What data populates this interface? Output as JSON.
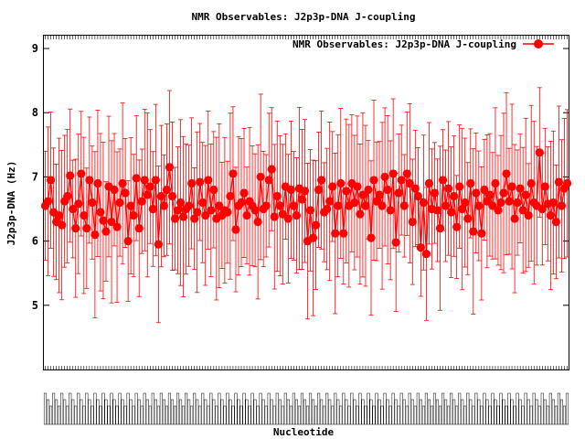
{
  "chart_data": {
    "type": "scatter",
    "title": "NMR Observables: J2p3p-DNA J-coupling",
    "xlabel": "Nucleotide",
    "ylabel": "J2p3p-DNA (Hz)",
    "ylim": [
      4,
      9.2
    ],
    "yticks": [
      "5",
      "6",
      "7",
      "8",
      "9"
    ],
    "grid": false,
    "legend_position": "top-right",
    "series": [
      {
        "name": "NMR Observables: J2p3p-DNA J-coupling",
        "color": "#ff0000",
        "marker": "filled-circle",
        "error_bars": true,
        "y": [
          6.55,
          6.62,
          6.95,
          6.45,
          6.3,
          6.4,
          6.25,
          6.62,
          6.7,
          7.02,
          6.5,
          6.2,
          6.58,
          7.05,
          6.4,
          6.2,
          6.95,
          6.6,
          6.1,
          6.9,
          6.45,
          6.32,
          6.15,
          6.85,
          6.3,
          6.8,
          6.22,
          6.6,
          6.9,
          6.75,
          6.0,
          6.55,
          6.4,
          6.98,
          6.2,
          6.62,
          6.95,
          6.72,
          6.85,
          6.5,
          6.95,
          5.95,
          6.7,
          6.55,
          6.8,
          7.15,
          6.7,
          6.35,
          6.48,
          6.6,
          6.38,
          6.5,
          6.55,
          6.9,
          6.35,
          6.45,
          6.92,
          6.6,
          6.4,
          6.95,
          6.48,
          6.8,
          6.35,
          6.55,
          6.4,
          6.48,
          6.45,
          6.7,
          7.05,
          6.18,
          6.55,
          6.6,
          6.75,
          6.4,
          6.62,
          6.55,
          6.48,
          6.3,
          7.0,
          6.5,
          6.55,
          6.95,
          7.12,
          6.38,
          6.7,
          6.55,
          6.42,
          6.85,
          6.35,
          6.8,
          6.55,
          6.4,
          6.82,
          6.65,
          6.78,
          6.0,
          6.48,
          6.05,
          6.25,
          6.8,
          6.95,
          6.45,
          6.5,
          6.62,
          6.85,
          6.12,
          6.55,
          6.9,
          6.12,
          6.78,
          6.55,
          6.9,
          6.6,
          6.85,
          6.42,
          6.72,
          6.55,
          6.8,
          6.05,
          6.95,
          6.62,
          6.72,
          6.55,
          7.0,
          6.8,
          6.48,
          7.05,
          5.98,
          6.75,
          6.95,
          6.55,
          7.05,
          6.9,
          6.3,
          6.82,
          6.7,
          5.9,
          6.6,
          5.8,
          6.9,
          6.5,
          6.75,
          6.48,
          6.2,
          6.95,
          6.55,
          6.82,
          6.45,
          6.7,
          6.22,
          6.85,
          6.5,
          6.6,
          6.35,
          6.9,
          6.15,
          6.75,
          6.55,
          6.12,
          6.8,
          6.62,
          6.72,
          6.55,
          6.9,
          6.48,
          6.6,
          6.75,
          7.05,
          6.62,
          6.85,
          6.35,
          6.6,
          6.82,
          6.48,
          6.72,
          6.4,
          6.9,
          6.6,
          6.55,
          7.38,
          6.5,
          6.85,
          6.58,
          6.4,
          6.6,
          6.3,
          6.92,
          6.55,
          6.82,
          6.9
        ]
      }
    ]
  }
}
